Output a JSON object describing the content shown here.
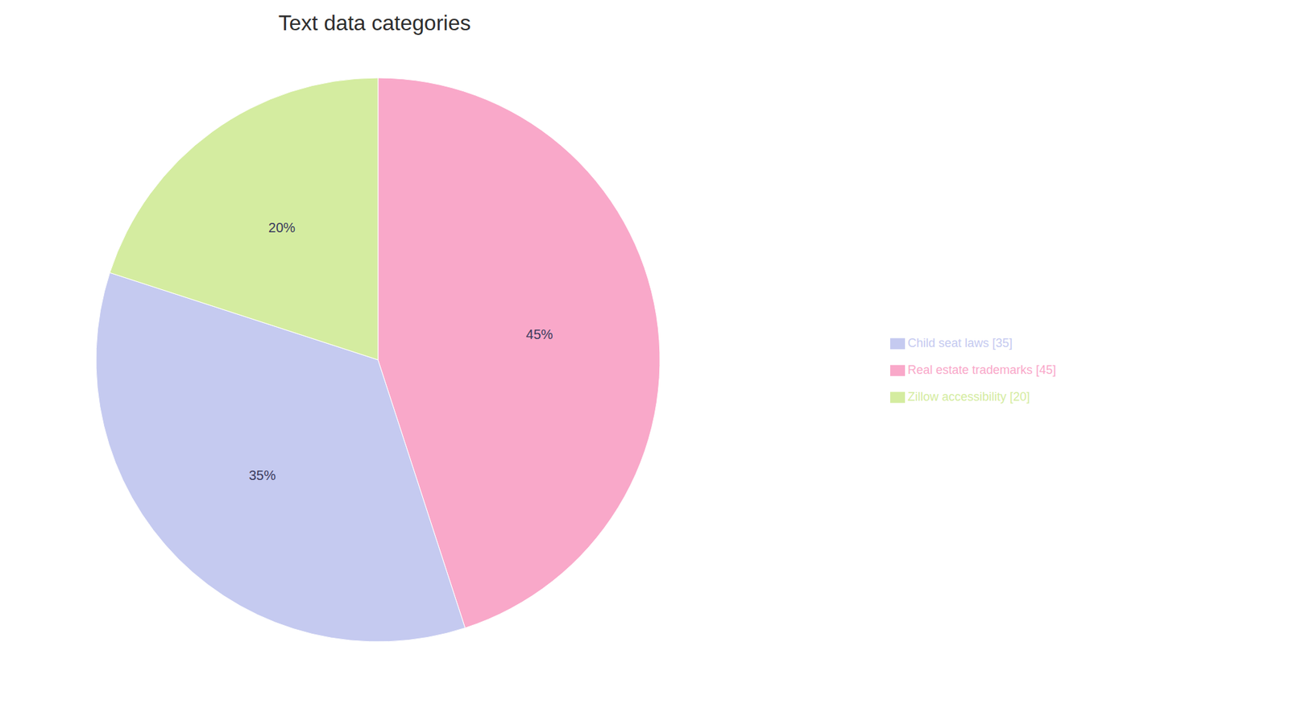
{
  "chart_data": {
    "type": "pie",
    "title": "Text data categories",
    "categories": [
      "Real estate trademarks [45]",
      "Child seat laws [35]",
      "Zillow accessibility [20]"
    ],
    "values": [
      45,
      35,
      20
    ],
    "value_labels": [
      "45%",
      "35%",
      "20%"
    ],
    "colors": [
      "#F9A8C9",
      "#C5CAF0",
      "#D4ECA0"
    ],
    "data_labels": true,
    "legend": "right"
  }
}
